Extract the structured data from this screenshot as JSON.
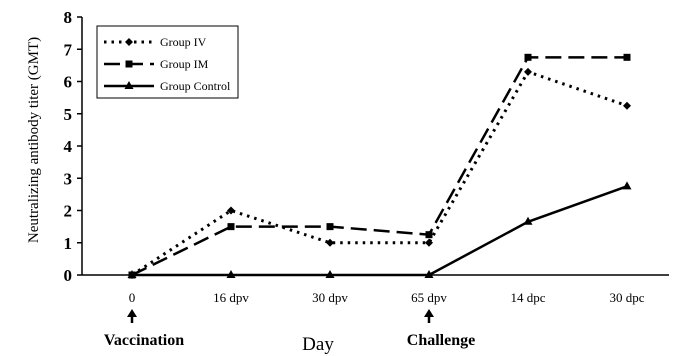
{
  "chart_data": {
    "type": "line",
    "title": "",
    "xlabel": "Day",
    "ylabel": "Neutralizing antibody titer  (GMT)",
    "ylim": [
      0,
      8
    ],
    "yticks": [
      "0",
      "1",
      "2",
      "3",
      "4",
      "5",
      "6",
      "7",
      "8"
    ],
    "categories": [
      "0",
      "16 dpv",
      "30 dpv",
      "65 dpv",
      "14 dpc",
      "30 dpc"
    ],
    "series": [
      {
        "name": "Group IV",
        "values": [
          0,
          2.0,
          1.0,
          1.0,
          6.3,
          5.25
        ],
        "line_style": "dotted",
        "marker": "diamond",
        "color": "#000000"
      },
      {
        "name": "Group IM",
        "values": [
          0,
          1.5,
          1.5,
          1.25,
          6.75,
          6.75
        ],
        "line_style": "long-dash",
        "marker": "square",
        "color": "#000000"
      },
      {
        "name": "Group Control",
        "values": [
          0,
          0,
          0,
          0,
          1.65,
          2.75
        ],
        "line_style": "solid",
        "marker": "triangle",
        "color": "#000000"
      }
    ],
    "annotations": [
      {
        "text": "Vaccination",
        "category": "0"
      },
      {
        "text": "Challenge",
        "category": "65 dpv"
      }
    ],
    "legend_position": "top-left",
    "grid": false
  }
}
